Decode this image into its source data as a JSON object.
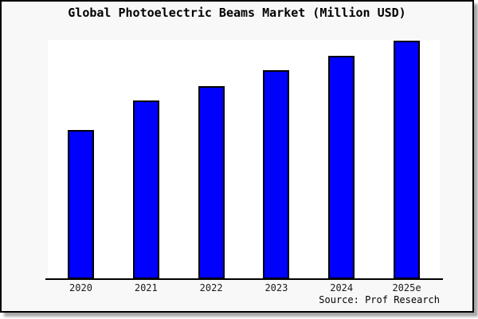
{
  "chart": {
    "title": "Global Photoelectric Beams Market (Million USD)",
    "source": "Source: Prof Research",
    "colors": {
      "bar_fill": "#0000ff",
      "bar_border": "#000000",
      "canvas_background": "#f8f8f8",
      "plot_background": "#ffffff",
      "axis": "#000000"
    }
  },
  "chart_data": {
    "type": "bar",
    "title": "Global Photoelectric Beams Market (Million USD)",
    "categories": [
      "2020",
      "2021",
      "2022",
      "2023",
      "2024",
      "2025e"
    ],
    "values_relative_height_pct": [
      62.3,
      74.7,
      80.7,
      87.2,
      93.5,
      99.7
    ],
    "xlabel": "",
    "ylabel": "",
    "y_axis_tick_labels_visible": false,
    "grid": false,
    "legend": false,
    "source": "Source: Prof Research"
  }
}
